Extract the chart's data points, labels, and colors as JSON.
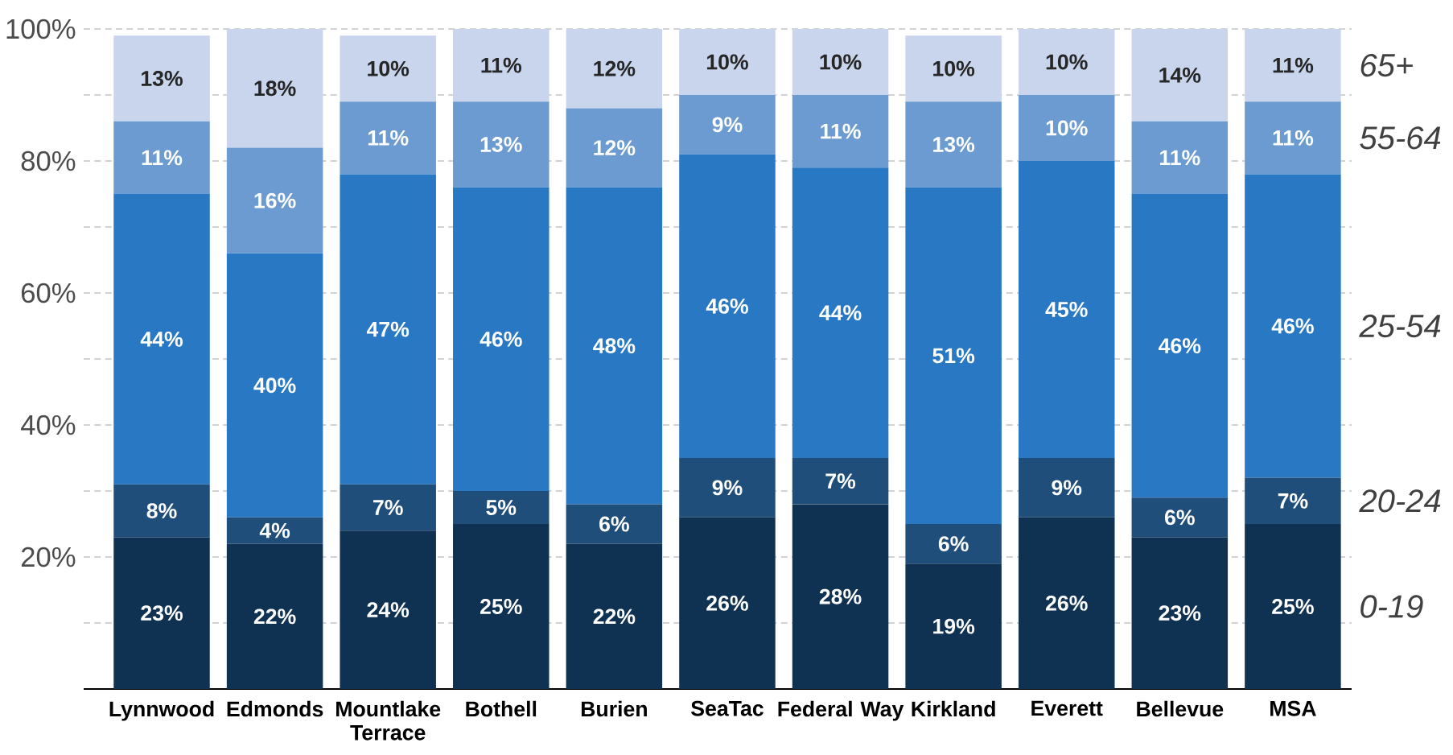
{
  "chart_data": {
    "type": "bar",
    "stacked": true,
    "categories": [
      "Lynnwood",
      "Edmonds",
      "Mountlake Terrace",
      "Bothell",
      "Burien",
      "SeaTac",
      "Federal Way",
      "Kirkland",
      "Everett",
      "Bellevue",
      "MSA"
    ],
    "series": [
      {
        "name": "0-19",
        "color": "#0f3253",
        "values": [
          23,
          22,
          24,
          25,
          22,
          26,
          28,
          19,
          26,
          23,
          25
        ],
        "value_labels": [
          "23%",
          "22%",
          "24%",
          "25%",
          "22%",
          "26%",
          "28%",
          "19%",
          "26%",
          "23%",
          "25%"
        ]
      },
      {
        "name": "20-24",
        "color": "#1f4e7a",
        "values": [
          8,
          4,
          7,
          5,
          6,
          9,
          7,
          6,
          9,
          6,
          7
        ],
        "value_labels": [
          "8%",
          "4%",
          "7%",
          "5%",
          "6%",
          "9%",
          "7%",
          "6%",
          "9%",
          "6%",
          "7%"
        ]
      },
      {
        "name": "25-54",
        "color": "#2878c3",
        "values": [
          44,
          40,
          47,
          46,
          48,
          46,
          44,
          51,
          45,
          46,
          46
        ],
        "value_labels": [
          "44%",
          "40%",
          "47%",
          "46%",
          "48%",
          "46%",
          "44%",
          "51%",
          "45%",
          "46%",
          "46%"
        ]
      },
      {
        "name": "55-64",
        "color": "#6b9bd0",
        "values": [
          11,
          16,
          11,
          13,
          12,
          9,
          11,
          13,
          10,
          11,
          11
        ],
        "value_labels": [
          "11%",
          "16%",
          "11%",
          "13%",
          "12%",
          "9%",
          "11%",
          "13%",
          "10%",
          "11%",
          "11%"
        ]
      },
      {
        "name": "65+",
        "color": "#c9d5ec",
        "values": [
          13,
          18,
          10,
          11,
          12,
          10,
          10,
          10,
          10,
          14,
          11
        ],
        "value_labels": [
          "13%",
          "18%",
          "10%",
          "11%",
          "12%",
          "10%",
          "10%",
          "10%",
          "10%",
          "14%",
          "11%"
        ]
      }
    ],
    "ylim": [
      0,
      100
    ],
    "yticks": [
      {
        "value": 10,
        "label": null
      },
      {
        "value": 20,
        "label": "20%"
      },
      {
        "value": 30,
        "label": null
      },
      {
        "value": 40,
        "label": "40%"
      },
      {
        "value": 50,
        "label": null
      },
      {
        "value": 60,
        "label": "60%"
      },
      {
        "value": 70,
        "label": null
      },
      {
        "value": 80,
        "label": "80%"
      },
      {
        "value": 90,
        "label": null
      },
      {
        "value": 100,
        "label": "100%"
      }
    ],
    "grid": "y"
  }
}
